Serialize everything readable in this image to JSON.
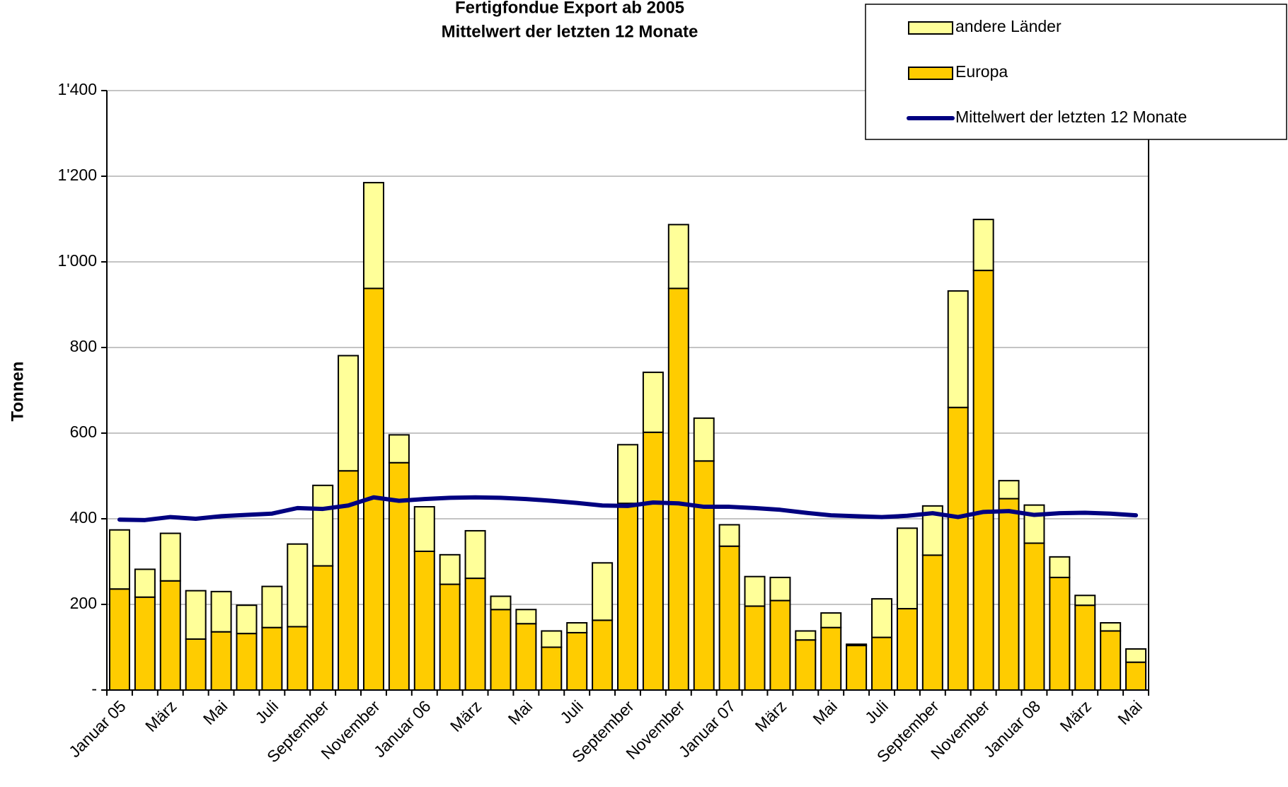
{
  "chart_data": {
    "type": "bar",
    "stacked": true,
    "title": "Fertigfondue Export ab 2005",
    "subtitle": "Mittelwert der letzten 12 Monate",
    "y_label": "Tonnen",
    "categories": [
      "Januar 05",
      null,
      "März",
      null,
      "Mai",
      null,
      "Juli",
      null,
      "September",
      null,
      "November",
      null,
      "Januar 06",
      null,
      "März",
      null,
      "Mai",
      null,
      "Juli",
      null,
      "September",
      null,
      "November",
      null,
      "Januar 07",
      null,
      "März",
      null,
      "Mai",
      null,
      "Juli",
      null,
      "September",
      null,
      "November",
      null,
      "Januar 08",
      null,
      "März",
      null,
      "Mai"
    ],
    "series": [
      {
        "name": "Europa",
        "color": "#ffcc00",
        "values": [
          236,
          217,
          255,
          119,
          136,
          132,
          146,
          148,
          290,
          512,
          938,
          531,
          324,
          247,
          261,
          188,
          155,
          100,
          134,
          163,
          436,
          602,
          938,
          535,
          336,
          196,
          209,
          117,
          146,
          104,
          123,
          190,
          315,
          660,
          980,
          447,
          343,
          263,
          198,
          138,
          65
        ]
      },
      {
        "name": "andere Länder",
        "color": "#ffff99",
        "values": [
          138,
          65,
          111,
          113,
          94,
          66,
          96,
          193,
          188,
          269,
          247,
          65,
          104,
          69,
          111,
          31,
          33,
          38,
          23,
          134,
          137,
          140,
          149,
          100,
          50,
          69,
          54,
          21,
          34,
          3,
          90,
          188,
          115,
          272,
          119,
          42,
          89,
          48,
          23,
          19,
          31
        ]
      },
      {
        "name": "Mittelwert der letzten 12 Monate",
        "type": "line",
        "color": "#000080",
        "values": [
          398,
          397,
          404,
          400,
          406,
          409,
          412,
          425,
          423,
          431,
          450,
          442,
          446,
          449,
          450,
          449,
          446,
          442,
          437,
          431,
          430,
          438,
          436,
          428,
          428,
          425,
          421,
          414,
          408,
          406,
          404,
          407,
          413,
          404,
          416,
          418,
          409,
          413,
          414,
          412,
          408
        ]
      }
    ],
    "ylim": [
      0,
      1400
    ],
    "yticks": [
      {
        "value": 0,
        "label": "-"
      },
      200,
      400,
      600,
      800,
      {
        "value": 1000,
        "label": "1'000"
      },
      {
        "value": 1200,
        "label": "1'200"
      },
      {
        "value": 1400,
        "label": "1'400"
      }
    ],
    "grid": true,
    "legend": "top-right"
  }
}
